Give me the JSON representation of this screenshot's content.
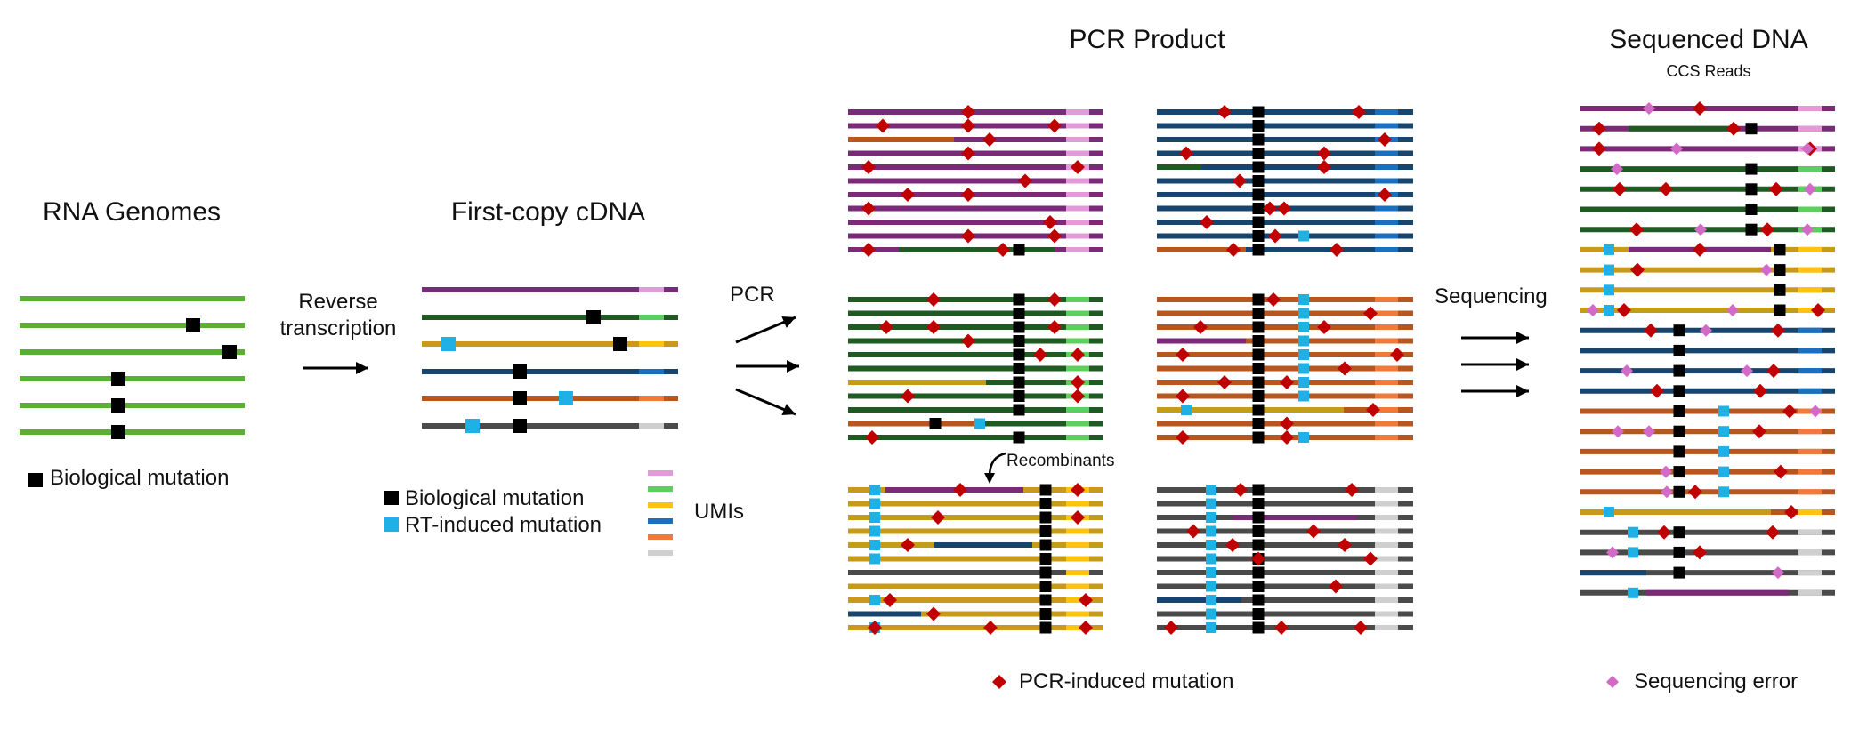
{
  "titles": {
    "rna_genomes": "RNA Genomes",
    "first_copy": "First-copy cDNA",
    "pcr_product": "PCR Product",
    "sequenced_dna": "Sequenced DNA",
    "ccs_reads": "CCS Reads"
  },
  "steps": {
    "reverse_line1": "Reverse",
    "reverse_line2": "transcription",
    "pcr": "PCR",
    "sequencing": "Sequencing",
    "recombinants": "Recombinants"
  },
  "legend": {
    "biological_mutation": "Biological mutation",
    "rt_mutation": "RT-induced mutation",
    "umis": "UMIs",
    "pcr_mutation": "PCR-induced mutation",
    "sequencing_error": "Sequencing error"
  },
  "colors": {
    "rna_green": "#5ab033",
    "purple": "#7b2a78",
    "dark_green": "#1f5a22",
    "gold": "#c89a1a",
    "navy": "#17456e",
    "rust": "#b8561f",
    "charcoal": "#4a4a4a",
    "umi_pink": "#e39ad8",
    "umi_green": "#5cd05c",
    "umi_yellow": "#ffc20e",
    "umi_blue": "#1a6fc0",
    "umi_orange": "#ef7a3a",
    "umi_gray": "#cfcfcf",
    "bio_mutation": "#000000",
    "rt_mutation": "#1fb0e6",
    "pcr_mutation": "#c00000",
    "seq_error": "#d36ac8"
  }
}
